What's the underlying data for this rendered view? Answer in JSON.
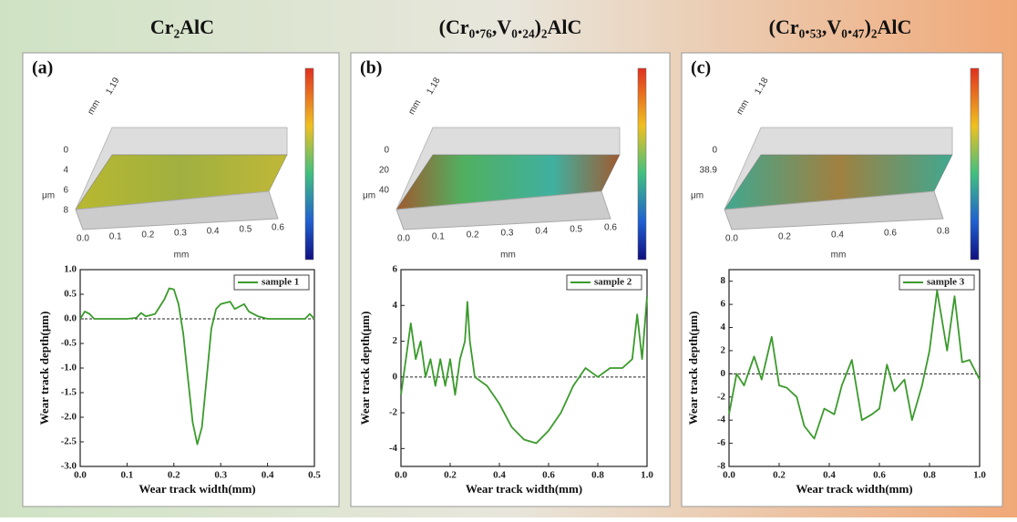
{
  "chart_data": [
    {
      "type": "line",
      "title": "Cr₂AlC",
      "panel_label": "(a)",
      "surface": {
        "xlabel": "mm",
        "ylabel": "mm",
        "zlabel": "μm",
        "width_label": "1.19",
        "xticks": [
          "0.0",
          "0.1",
          "0.2",
          "0.3",
          "0.4",
          "0.5",
          "0.6"
        ],
        "zticks": [
          "0",
          "4",
          "6",
          "8"
        ]
      },
      "xlabel": "Wear track width(mm)",
      "ylabel": "Wear track depth(μm)",
      "xlim": [
        0,
        0.5
      ],
      "xticks": [
        {
          "value": 0,
          "label": "0.0"
        },
        0.1,
        0.2,
        0.3,
        0.4,
        0.5
      ],
      "ylim": [
        -3,
        1
      ],
      "yticks": [
        {
          "value": -3,
          "label": "-3.0"
        },
        -2.5,
        {
          "value": -2,
          "label": "-2.0"
        },
        -1.5,
        {
          "value": -1,
          "label": "-1.0"
        },
        -0.5,
        {
          "value": 0,
          "label": "0.0"
        },
        0.5,
        {
          "value": 1,
          "label": "1.0"
        }
      ],
      "x": [
        0,
        0.01,
        0.02,
        0.03,
        0.05,
        0.08,
        0.1,
        0.12,
        0.13,
        0.14,
        0.16,
        0.18,
        0.19,
        0.2,
        0.21,
        0.22,
        0.23,
        0.24,
        0.25,
        0.26,
        0.27,
        0.28,
        0.29,
        0.3,
        0.32,
        0.33,
        0.34,
        0.35,
        0.36,
        0.38,
        0.4,
        0.45,
        0.48,
        0.49,
        0.5
      ],
      "series": [
        {
          "name": "sample 1",
          "color": "#3b9a2c",
          "values": [
            0.0,
            0.15,
            0.1,
            0.0,
            0.0,
            0.0,
            0.0,
            0.02,
            0.12,
            0.05,
            0.1,
            0.4,
            0.62,
            0.6,
            0.3,
            -0.3,
            -1.2,
            -2.1,
            -2.55,
            -2.2,
            -1.2,
            -0.2,
            0.2,
            0.3,
            0.35,
            0.2,
            0.25,
            0.3,
            0.15,
            0.05,
            0.0,
            0.0,
            0.0,
            0.1,
            0.0
          ]
        }
      ]
    },
    {
      "type": "line",
      "title": "(Cr₀.₇₆,V₀.₂₄)₂AlC",
      "panel_label": "(b)",
      "surface": {
        "xlabel": "mm",
        "ylabel": "mm",
        "zlabel": "μm",
        "width_label": "1.18",
        "xticks": [
          "0.0",
          "0.1",
          "0.2",
          "0.3",
          "0.4",
          "0.5",
          "0.6"
        ],
        "zticks": [
          "0",
          "20",
          "40"
        ]
      },
      "xlabel": "Wear track width(mm)",
      "ylabel": "Wear track depth(μm)",
      "xlim": [
        0,
        1
      ],
      "xticks": [
        {
          "value": 0,
          "label": "0.0"
        },
        0.2,
        0.4,
        0.6,
        0.8,
        {
          "value": 1,
          "label": "1.0"
        }
      ],
      "ylim": [
        -5,
        6
      ],
      "yticks": [
        -4,
        -2,
        0,
        2,
        4,
        6
      ],
      "x": [
        0,
        0.02,
        0.04,
        0.06,
        0.08,
        0.1,
        0.12,
        0.14,
        0.16,
        0.18,
        0.2,
        0.22,
        0.24,
        0.26,
        0.27,
        0.28,
        0.3,
        0.35,
        0.4,
        0.45,
        0.5,
        0.55,
        0.6,
        0.65,
        0.7,
        0.75,
        0.8,
        0.85,
        0.9,
        0.94,
        0.96,
        0.98,
        1.0
      ],
      "series": [
        {
          "name": "sample 2",
          "color": "#3b9a2c",
          "values": [
            -1,
            1,
            3,
            1,
            2,
            0,
            1,
            -0.5,
            1,
            -0.5,
            1,
            -1,
            1,
            2,
            4.2,
            2,
            0,
            -0.5,
            -1.5,
            -2.8,
            -3.5,
            -3.7,
            -3,
            -2,
            -0.5,
            0.5,
            0,
            0.5,
            0.5,
            1,
            3.5,
            1,
            4.5
          ]
        }
      ]
    },
    {
      "type": "line",
      "title": "(Cr₀.₅₃,V₀.₄₇)₂AlC",
      "panel_label": "(c)",
      "surface": {
        "xlabel": "mm",
        "ylabel": "mm",
        "zlabel": "μm",
        "width_label": "1.18",
        "xticks": [
          "0.0",
          "0.2",
          "0.4",
          "0.6",
          "0.8"
        ],
        "zticks": [
          "0",
          "38.9"
        ]
      },
      "xlabel": "Wear track width(mm)",
      "ylabel": "Wear track depth(μm)",
      "xlim": [
        0,
        1
      ],
      "xticks": [
        {
          "value": 0,
          "label": "0.0"
        },
        0.2,
        0.4,
        0.6,
        0.8,
        {
          "value": 1,
          "label": "1.0"
        }
      ],
      "ylim": [
        -8,
        9
      ],
      "yticks": [
        -8,
        -6,
        -4,
        -2,
        0,
        2,
        4,
        6,
        8
      ],
      "x": [
        0,
        0.03,
        0.06,
        0.1,
        0.13,
        0.17,
        0.2,
        0.23,
        0.27,
        0.3,
        0.34,
        0.38,
        0.42,
        0.45,
        0.49,
        0.53,
        0.57,
        0.6,
        0.63,
        0.66,
        0.7,
        0.73,
        0.77,
        0.8,
        0.83,
        0.87,
        0.9,
        0.93,
        0.96,
        1.0
      ],
      "series": [
        {
          "name": "sample 3",
          "color": "#3b9a2c",
          "values": [
            -3.5,
            0,
            -1,
            1.5,
            -0.5,
            3.2,
            -1,
            -1.2,
            -2,
            -4.5,
            -5.6,
            -3,
            -3.5,
            -1,
            1.2,
            -4,
            -3.5,
            -3,
            0.8,
            -1.5,
            -0.5,
            -4,
            -1,
            2,
            7.2,
            2,
            6.7,
            1,
            1.2,
            -0.5
          ]
        }
      ]
    }
  ]
}
